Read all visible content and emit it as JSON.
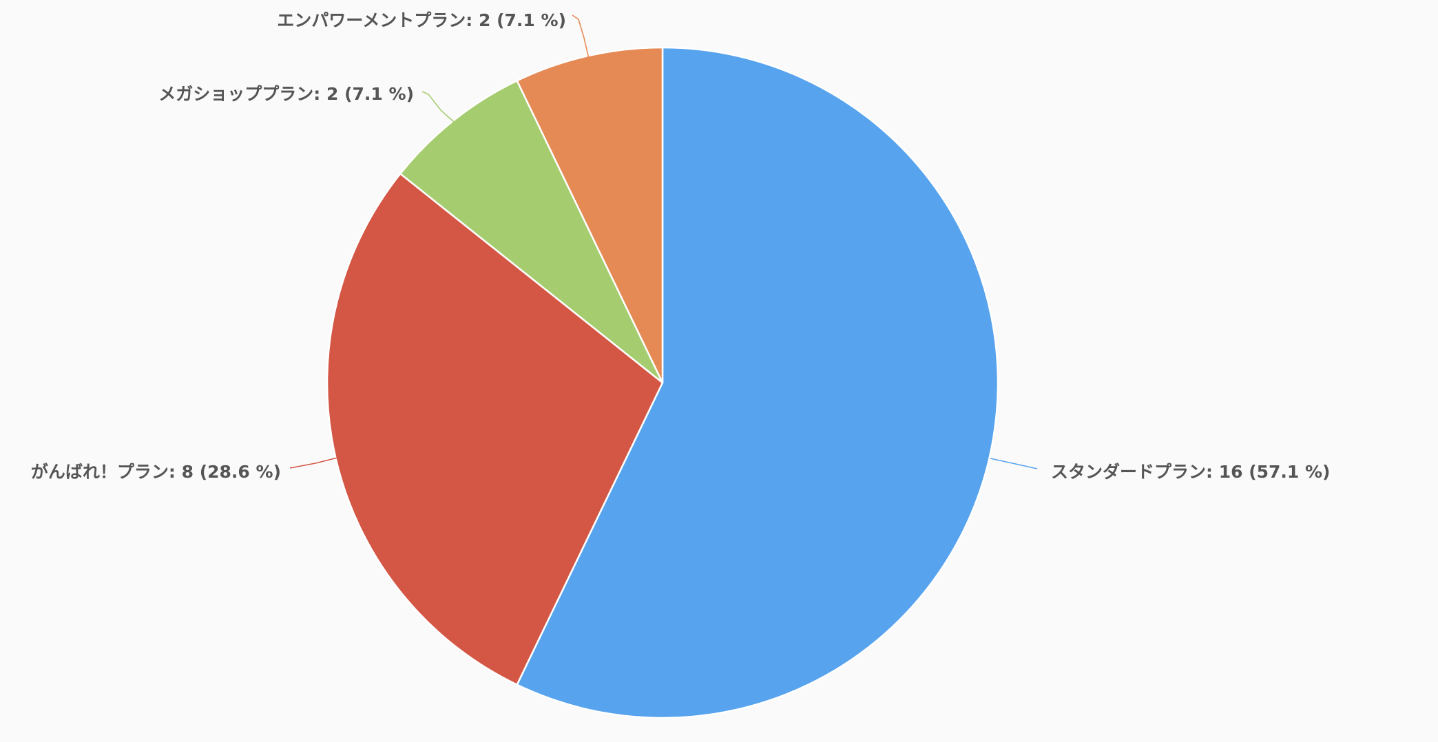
{
  "chart_data": {
    "type": "pie",
    "title": "",
    "start_angle_deg": 0,
    "direction": "clockwise",
    "label_format": "{name}: {value} ({percent} %)",
    "slices": [
      {
        "name": "スタンダードプラン",
        "value": 16,
        "percent": "57.1",
        "color": "#57a3ee"
      },
      {
        "name": "がんばれ！プラン",
        "value": 8,
        "percent": "28.6",
        "color": "#d45745"
      },
      {
        "name": "メガショッププラン",
        "value": 2,
        "percent": "7.1",
        "color": "#a6cc70"
      },
      {
        "name": "エンパワーメントプラン",
        "value": 2,
        "percent": "7.1",
        "color": "#e68a55"
      }
    ]
  }
}
